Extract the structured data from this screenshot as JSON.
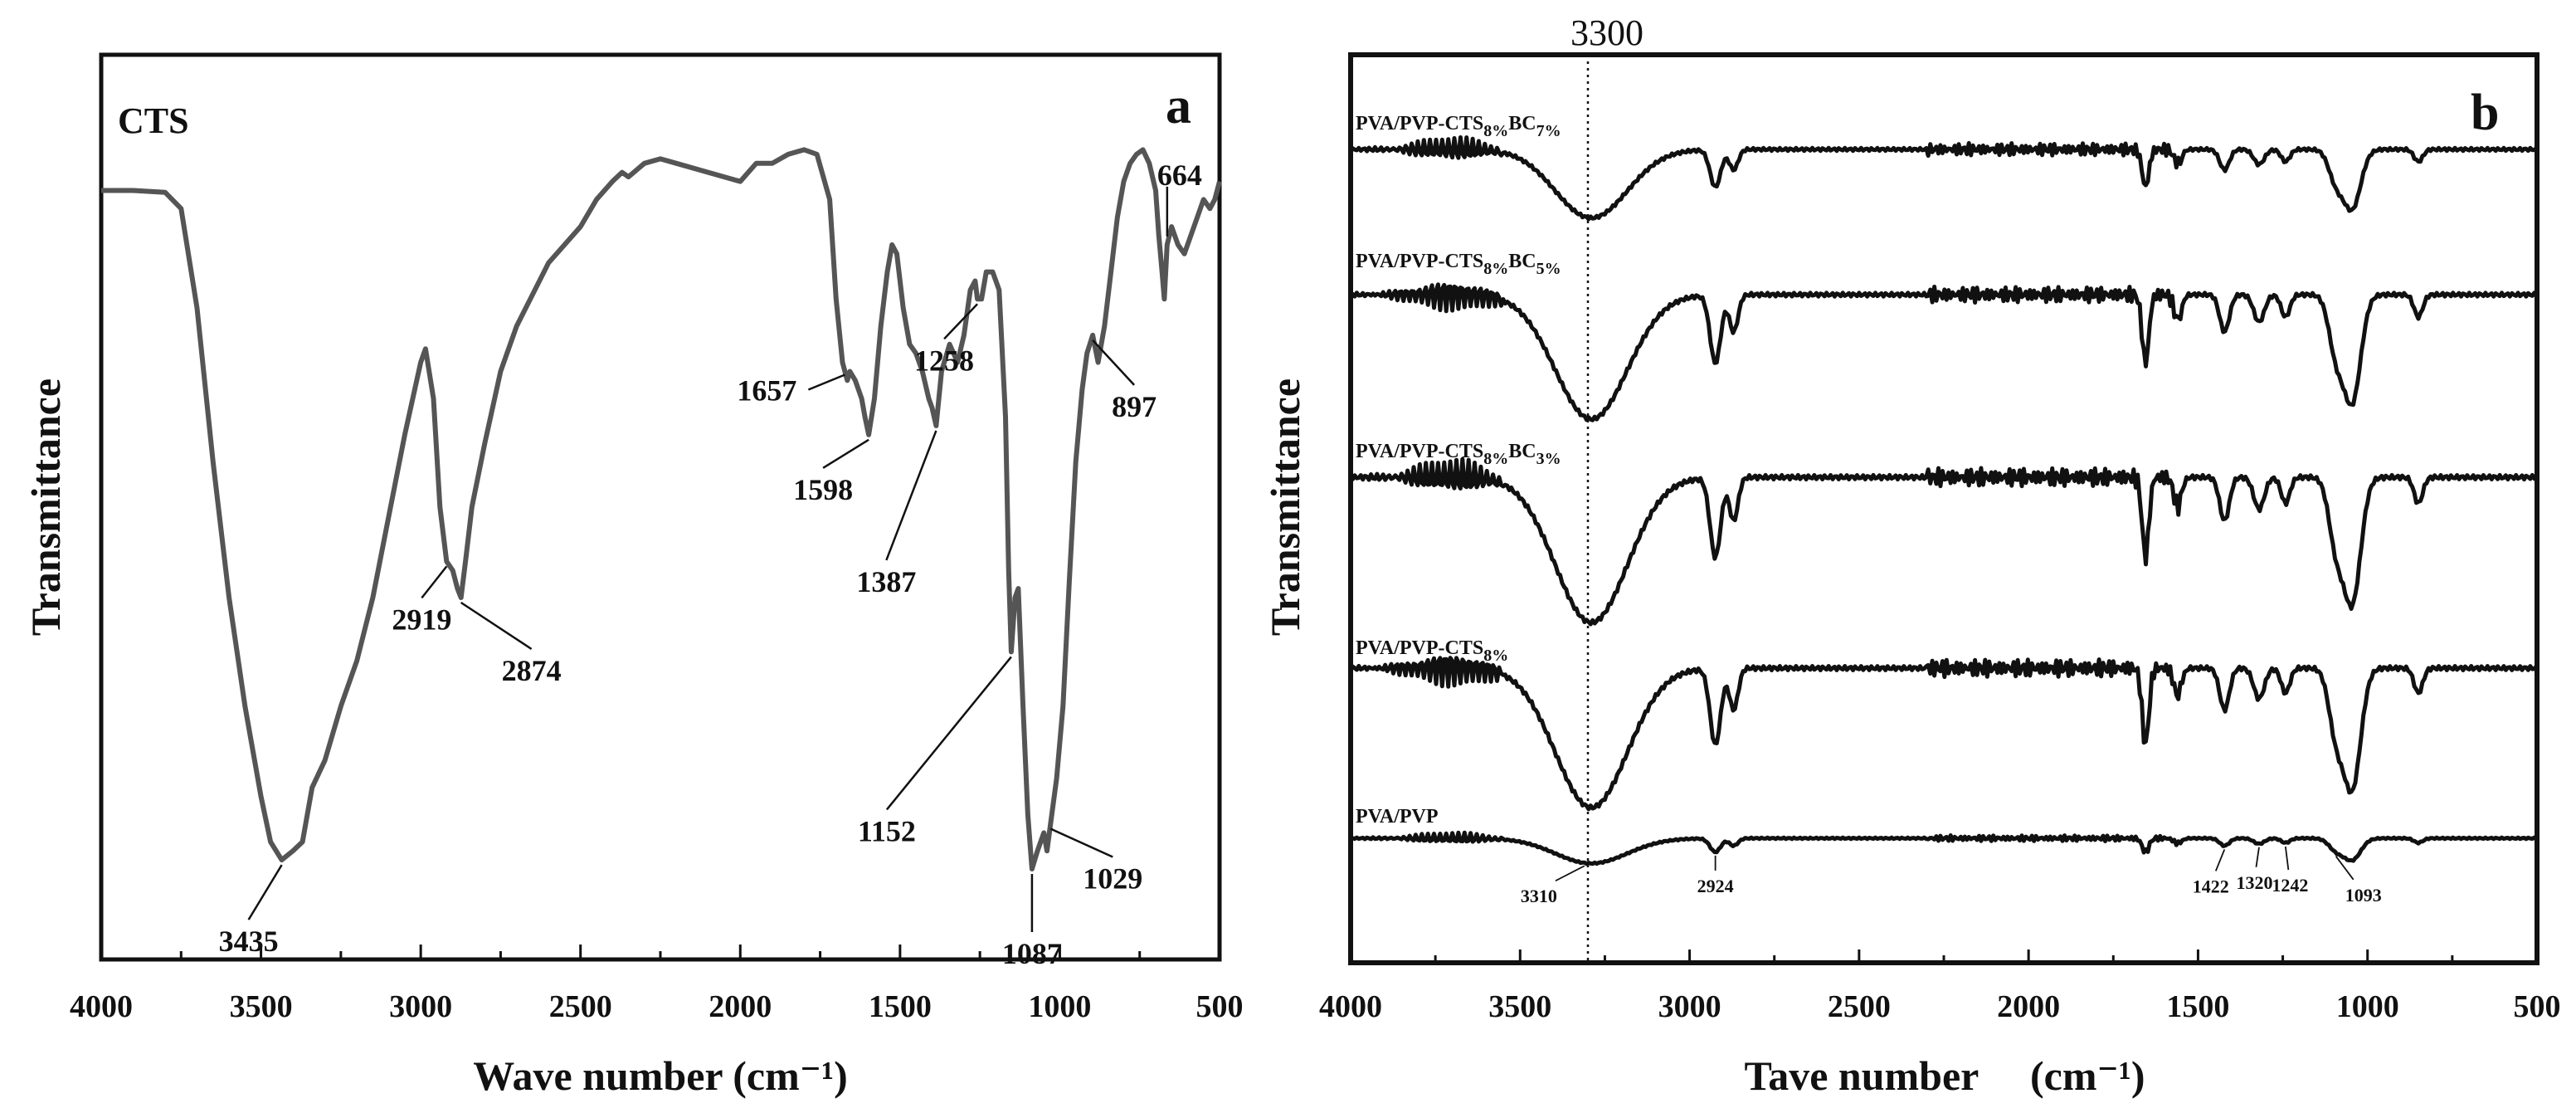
{
  "chart_data": [
    {
      "type": "line",
      "panel_letter": "a",
      "series_label": "CTS",
      "xlabel": "Wave number (cm⁻¹)",
      "ylabel": "Transmittance",
      "xlim": [
        4000,
        500
      ],
      "ylim": [
        0,
        100
      ],
      "x_ticks": [
        "4000",
        "3500",
        "3000",
        "2500",
        "2000",
        "1500",
        "1000",
        "500"
      ],
      "color": "#555555",
      "series": [
        {
          "name": "CTS",
          "points": [
            [
              4000,
              85
            ],
            [
              3900,
              85
            ],
            [
              3800,
              84.8
            ],
            [
              3750,
              83
            ],
            [
              3700,
              72
            ],
            [
              3650,
              55
            ],
            [
              3600,
              40
            ],
            [
              3550,
              28
            ],
            [
              3500,
              18
            ],
            [
              3470,
              13
            ],
            [
              3435,
              11
            ],
            [
              3400,
              12
            ],
            [
              3370,
              13
            ],
            [
              3340,
              19
            ],
            [
              3300,
              22
            ],
            [
              3250,
              28
            ],
            [
              3200,
              33
            ],
            [
              3150,
              40
            ],
            [
              3100,
              49
            ],
            [
              3050,
              58
            ],
            [
              3000,
              66
            ],
            [
              2985,
              67.5
            ],
            [
              2960,
              62
            ],
            [
              2940,
              50
            ],
            [
              2919,
              44
            ],
            [
              2900,
              43
            ],
            [
              2885,
              41
            ],
            [
              2874,
              40
            ],
            [
              2860,
              44
            ],
            [
              2840,
              50
            ],
            [
              2800,
              57
            ],
            [
              2750,
              65
            ],
            [
              2700,
              70
            ],
            [
              2600,
              77
            ],
            [
              2500,
              81
            ],
            [
              2450,
              84
            ],
            [
              2400,
              86
            ],
            [
              2370,
              87
            ],
            [
              2350,
              86.5
            ],
            [
              2300,
              88
            ],
            [
              2250,
              88.5
            ],
            [
              2200,
              88
            ],
            [
              2100,
              87
            ],
            [
              2000,
              86
            ],
            [
              1950,
              88
            ],
            [
              1900,
              88
            ],
            [
              1850,
              89
            ],
            [
              1800,
              89.5
            ],
            [
              1760,
              89
            ],
            [
              1720,
              84
            ],
            [
              1700,
              73
            ],
            [
              1680,
              66
            ],
            [
              1665,
              64
            ],
            [
              1657,
              65
            ],
            [
              1640,
              64
            ],
            [
              1620,
              62
            ],
            [
              1610,
              60
            ],
            [
              1598,
              58
            ],
            [
              1580,
              62
            ],
            [
              1560,
              70
            ],
            [
              1540,
              76
            ],
            [
              1525,
              79
            ],
            [
              1510,
              78
            ],
            [
              1490,
              72
            ],
            [
              1470,
              68
            ],
            [
              1450,
              67
            ],
            [
              1430,
              65
            ],
            [
              1410,
              62
            ],
            [
              1400,
              61
            ],
            [
              1387,
              59
            ],
            [
              1370,
              65
            ],
            [
              1345,
              68
            ],
            [
              1320,
              66
            ],
            [
              1300,
              69
            ],
            [
              1280,
              74
            ],
            [
              1265,
              75
            ],
            [
              1258,
              73
            ],
            [
              1245,
              73
            ],
            [
              1230,
              76
            ],
            [
              1210,
              76
            ],
            [
              1190,
              74
            ],
            [
              1170,
              60
            ],
            [
              1160,
              43
            ],
            [
              1152,
              34
            ],
            [
              1140,
              40
            ],
            [
              1130,
              41
            ],
            [
              1115,
              28
            ],
            [
              1100,
              16
            ],
            [
              1087,
              10
            ],
            [
              1070,
              12
            ],
            [
              1050,
              14
            ],
            [
              1040,
              12
            ],
            [
              1029,
              15
            ],
            [
              1010,
              20
            ],
            [
              990,
              28
            ],
            [
              970,
              42
            ],
            [
              950,
              55
            ],
            [
              930,
              63
            ],
            [
              915,
              67
            ],
            [
              897,
              69
            ],
            [
              880,
              66
            ],
            [
              860,
              70
            ],
            [
              840,
              76
            ],
            [
              820,
              82
            ],
            [
              800,
              86
            ],
            [
              780,
              88
            ],
            [
              760,
              89
            ],
            [
              740,
              89.5
            ],
            [
              720,
              88
            ],
            [
              700,
              85
            ],
            [
              690,
              80
            ],
            [
              680,
              76
            ],
            [
              673,
              73
            ],
            [
              664,
              79
            ],
            [
              650,
              81
            ],
            [
              630,
              79
            ],
            [
              610,
              78
            ],
            [
              590,
              80
            ],
            [
              570,
              82
            ],
            [
              550,
              84
            ],
            [
              530,
              83
            ],
            [
              515,
              84
            ],
            [
              500,
              86
            ]
          ]
        }
      ],
      "annotations": [
        {
          "text": "3435",
          "x": 3435,
          "y": 11
        },
        {
          "text": "2919",
          "x": 2919,
          "y": 44
        },
        {
          "text": "2874",
          "x": 2874,
          "y": 40
        },
        {
          "text": "1657",
          "x": 1657,
          "y": 65
        },
        {
          "text": "1598",
          "x": 1598,
          "y": 58
        },
        {
          "text": "1387",
          "x": 1387,
          "y": 59
        },
        {
          "text": "1258",
          "x": 1258,
          "y": 73
        },
        {
          "text": "1152",
          "x": 1152,
          "y": 34
        },
        {
          "text": "1087",
          "x": 1087,
          "y": 10
        },
        {
          "text": "1029",
          "x": 1029,
          "y": 15
        },
        {
          "text": "897",
          "x": 897,
          "y": 69
        },
        {
          "text": "664",
          "x": 664,
          "y": 79
        }
      ]
    },
    {
      "type": "line",
      "panel_letter": "b",
      "xlabel": "Tave number 　(cm⁻¹)",
      "ylabel": "Transmittance",
      "xlim": [
        4000,
        500
      ],
      "x_ticks": [
        "4000",
        "3500",
        "3000",
        "2500",
        "2000",
        "1500",
        "1000",
        "500"
      ],
      "reference_line": {
        "x": 3300,
        "label": "3300"
      },
      "color": "#111111",
      "series": [
        {
          "name": "PVA/PVP-CTS",
          "sub1": "8%",
          "mid": "BC",
          "sub2": "7%",
          "offset": 0,
          "depth_scale": 0.7
        },
        {
          "name": "PVA/PVP-CTS",
          "sub1": "8%",
          "mid": "BC",
          "sub2": "5%",
          "offset": 1,
          "depth_scale": 1.0
        },
        {
          "name": "PVA/PVP-CTS",
          "sub1": "8%",
          "mid": "BC",
          "sub2": "3%",
          "offset": 2,
          "depth_scale": 1.0
        },
        {
          "name": "PVA/PVP-CTS",
          "sub1": "8%",
          "mid": "",
          "sub2": "",
          "offset": 3,
          "depth_scale": 1.0
        },
        {
          "name": "PVA/PVP",
          "sub1": "",
          "mid": "",
          "sub2": "",
          "offset": 4,
          "depth_scale": 0.55
        }
      ],
      "peak_labels": [
        {
          "text": "3310",
          "x": 3310
        },
        {
          "text": "2924",
          "x": 2924
        },
        {
          "text": "1422",
          "x": 1422
        },
        {
          "text": "1320",
          "x": 1320
        },
        {
          "text": "1242",
          "x": 1242
        },
        {
          "text": "1093",
          "x": 1093
        }
      ]
    }
  ]
}
